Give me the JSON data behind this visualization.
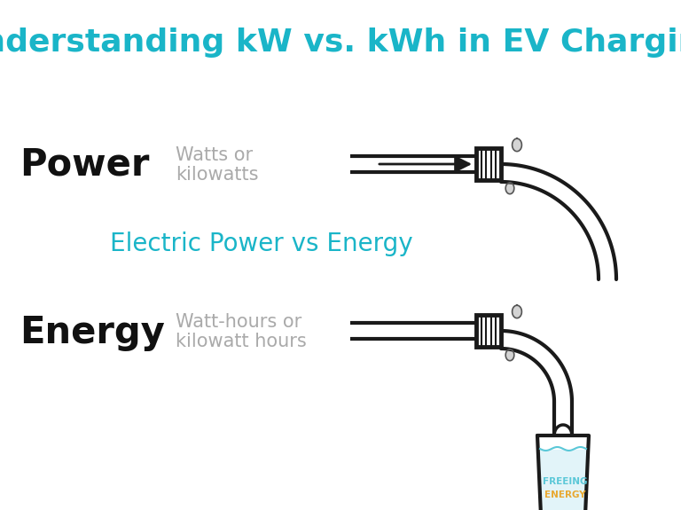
{
  "title": "Understanding kW vs. kWh in EV Charging",
  "title_color": "#1ab5c8",
  "title_fontsize": 26,
  "subtitle": "Electric Power vs Energy",
  "subtitle_color": "#1ab5c8",
  "subtitle_fontsize": 20,
  "power_label": "Power",
  "power_desc1": "Watts or",
  "power_desc2": "kilowatts",
  "energy_label": "Energy",
  "energy_desc1": "Watt-hours or",
  "energy_desc2": "kilowatt hours",
  "label_color": "#111111",
  "desc_color": "#aaaaaa",
  "label_fontsize": 30,
  "desc_fontsize": 15,
  "pipe_color": "#1a1a1a",
  "background_color": "#ffffff",
  "freeing_energy_color_top": "#5bc8d8",
  "freeing_energy_color_bot": "#e8a830",
  "freeing_energy_line1": "FREEING",
  "freeing_energy_line2": "ENERGY"
}
